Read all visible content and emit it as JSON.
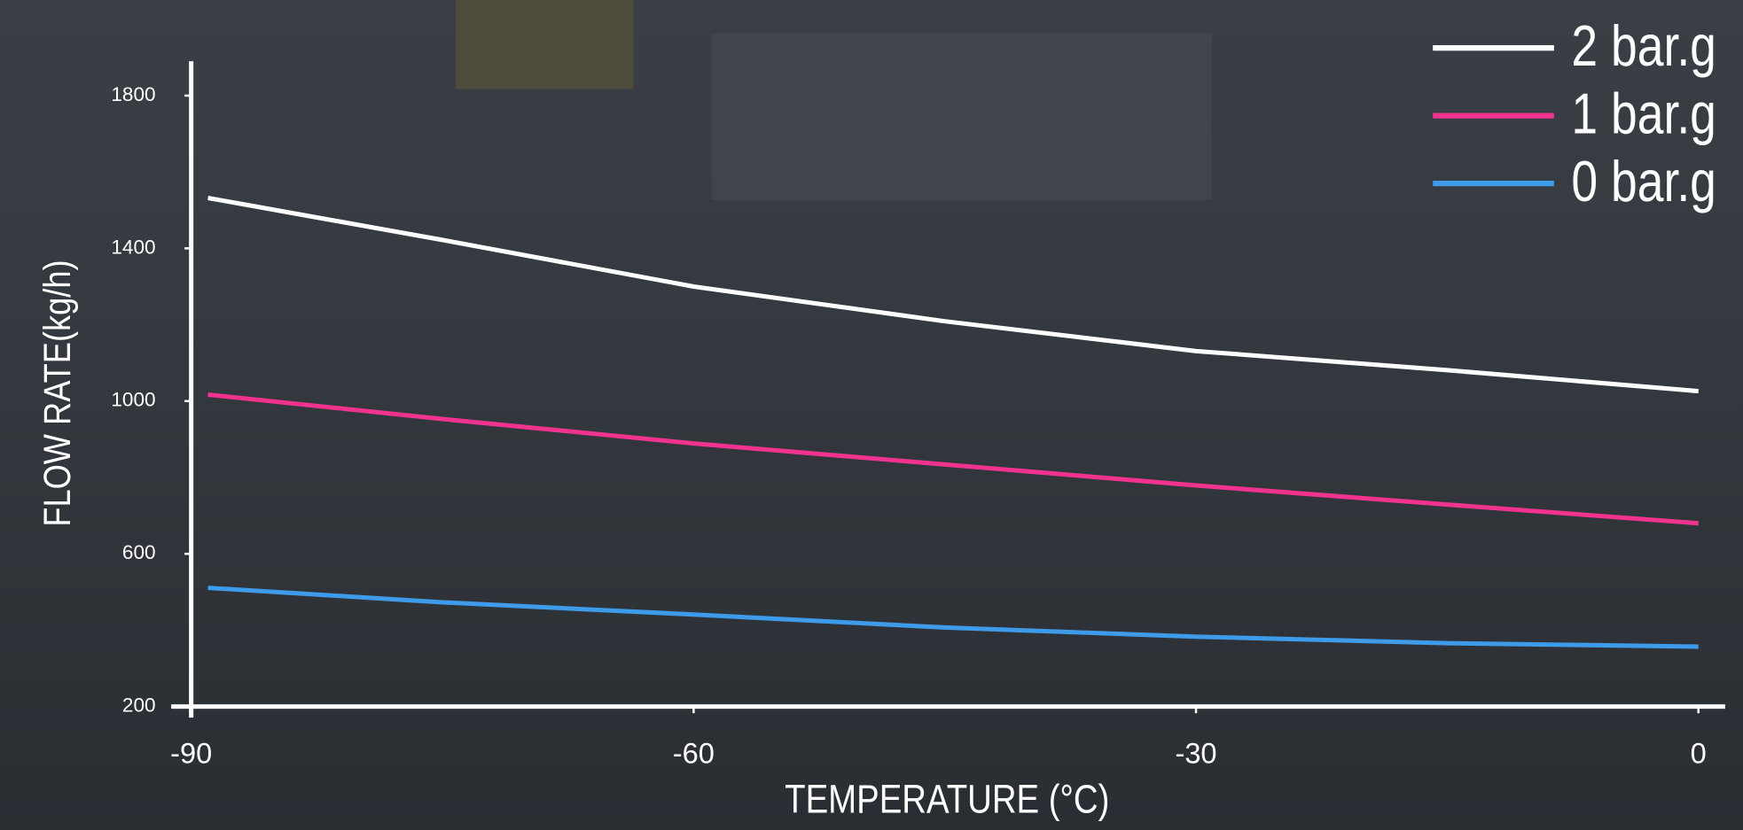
{
  "chart_data": {
    "type": "line",
    "x_label": "TEMPERATURE (°C)",
    "y_label": "FLOW RATE(kg/h)",
    "x": [
      -89,
      -75,
      -60,
      -45,
      -30,
      -15,
      0
    ],
    "series": [
      {
        "name": "2 bar.g",
        "color": "#ffffff",
        "values": [
          1532,
          1422,
          1300,
          1209,
          1131,
          1081,
          1026
        ]
      },
      {
        "name": "1 bar.g",
        "color": "#f0338f",
        "values": [
          1017,
          953,
          889,
          834,
          779,
          729,
          680
        ]
      },
      {
        "name": "0 bar.g",
        "color": "#3d9be9",
        "values": [
          511,
          473,
          441,
          407,
          383,
          366,
          357
        ]
      }
    ],
    "xlim": [
      -90,
      1.6
    ],
    "ylim": [
      200,
      1890
    ],
    "xticks": [
      -90,
      -60,
      -30,
      0
    ],
    "yticks": [
      200,
      600,
      1000,
      1400,
      1800
    ],
    "legend": "top-right"
  }
}
